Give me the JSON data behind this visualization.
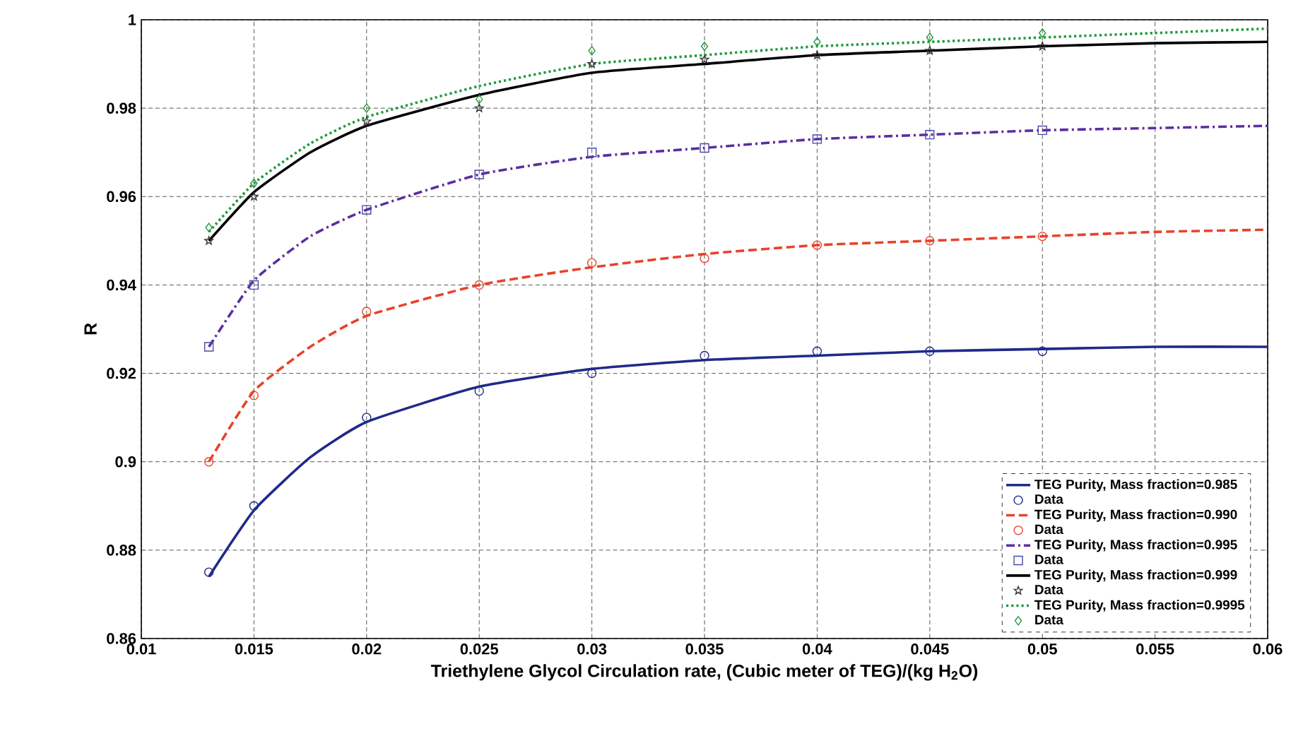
{
  "chart_data": {
    "type": "line",
    "xlabel": "Triethylene Glycol Circulation rate, (Cubic meter of TEG)/(kg H$_{2}$O)",
    "ylabel": "R",
    "xlim": [
      0.01,
      0.06
    ],
    "ylim": [
      0.86,
      1
    ],
    "xticks": [
      0.01,
      0.015,
      0.02,
      0.025,
      0.03,
      0.035,
      0.04,
      0.045,
      0.05,
      0.055,
      0.06
    ],
    "yticks": [
      0.86,
      0.88,
      0.9,
      0.92,
      0.94,
      0.96,
      0.98,
      1
    ],
    "grid": true,
    "legend": "bottom right",
    "series": [
      {
        "name": "TEG Purity, Mass fraction=0.985",
        "color": "#1f2a8a",
        "line_style": "solid",
        "marker": "none",
        "x": [
          0.013,
          0.015,
          0.0175,
          0.02,
          0.025,
          0.03,
          0.035,
          0.04,
          0.045,
          0.05,
          0.055,
          0.06
        ],
        "values": [
          0.874,
          0.889,
          0.901,
          0.909,
          0.917,
          0.921,
          0.923,
          0.924,
          0.925,
          0.9255,
          0.926,
          0.926
        ]
      },
      {
        "name": "Data",
        "type": "scatter",
        "color": "#1f2a8a",
        "marker": "circle",
        "x": [
          0.013,
          0.015,
          0.02,
          0.025,
          0.03,
          0.035,
          0.04,
          0.045,
          0.05
        ],
        "values": [
          0.875,
          0.89,
          0.91,
          0.916,
          0.92,
          0.924,
          0.925,
          0.925,
          0.925
        ]
      },
      {
        "name": "TEG Purity, Mass fraction=0.990",
        "color": "#e8432a",
        "line_style": "dashed",
        "marker": "none",
        "x": [
          0.013,
          0.015,
          0.0175,
          0.02,
          0.025,
          0.03,
          0.035,
          0.04,
          0.045,
          0.05,
          0.055,
          0.06
        ],
        "values": [
          0.9,
          0.916,
          0.926,
          0.933,
          0.94,
          0.944,
          0.947,
          0.949,
          0.95,
          0.951,
          0.952,
          0.9525
        ]
      },
      {
        "name": "Data",
        "type": "scatter",
        "color": "#e8432a",
        "marker": "circle",
        "x": [
          0.013,
          0.015,
          0.02,
          0.025,
          0.03,
          0.035,
          0.04,
          0.045,
          0.05
        ],
        "values": [
          0.9,
          0.915,
          0.934,
          0.94,
          0.945,
          0.946,
          0.949,
          0.95,
          0.951
        ]
      },
      {
        "name": "TEG Purity, Mass fraction=0.995",
        "color": "#5b2ea0",
        "line_style": "dashdot",
        "marker": "none",
        "x": [
          0.013,
          0.015,
          0.0175,
          0.02,
          0.025,
          0.03,
          0.035,
          0.04,
          0.045,
          0.05,
          0.055,
          0.06
        ],
        "values": [
          0.926,
          0.941,
          0.951,
          0.957,
          0.965,
          0.969,
          0.971,
          0.973,
          0.974,
          0.975,
          0.9755,
          0.976
        ]
      },
      {
        "name": "Data",
        "type": "scatter",
        "color": "#4a4aa8",
        "marker": "square",
        "x": [
          0.013,
          0.015,
          0.02,
          0.025,
          0.03,
          0.035,
          0.04,
          0.045,
          0.05
        ],
        "values": [
          0.926,
          0.94,
          0.957,
          0.965,
          0.97,
          0.971,
          0.973,
          0.974,
          0.975
        ]
      },
      {
        "name": "TEG Purity, Mass fraction=0.999",
        "color": "#000000",
        "line_style": "solid",
        "marker": "none",
        "x": [
          0.013,
          0.015,
          0.0175,
          0.02,
          0.025,
          0.03,
          0.035,
          0.04,
          0.045,
          0.05,
          0.055,
          0.06
        ],
        "values": [
          0.95,
          0.961,
          0.97,
          0.976,
          0.983,
          0.988,
          0.99,
          0.992,
          0.993,
          0.994,
          0.9947,
          0.995
        ]
      },
      {
        "name": "Data",
        "type": "scatter",
        "color": "#333333",
        "marker": "star",
        "x": [
          0.013,
          0.015,
          0.02,
          0.025,
          0.03,
          0.035,
          0.04,
          0.045,
          0.05
        ],
        "values": [
          0.95,
          0.96,
          0.977,
          0.98,
          0.99,
          0.991,
          0.992,
          0.993,
          0.994
        ]
      },
      {
        "name": "TEG Purity, Mass fraction=0.9995",
        "color": "#1e9a3a",
        "line_style": "dotted",
        "marker": "none",
        "x": [
          0.013,
          0.015,
          0.0175,
          0.02,
          0.025,
          0.03,
          0.035,
          0.04,
          0.045,
          0.05,
          0.055,
          0.06
        ],
        "values": [
          0.952,
          0.963,
          0.972,
          0.978,
          0.985,
          0.99,
          0.992,
          0.994,
          0.995,
          0.996,
          0.997,
          0.998
        ]
      },
      {
        "name": "Data",
        "type": "scatter",
        "color": "#1e9a3a",
        "marker": "diamond",
        "x": [
          0.013,
          0.015,
          0.02,
          0.025,
          0.03,
          0.035,
          0.04,
          0.045,
          0.05
        ],
        "values": [
          0.953,
          0.963,
          0.98,
          0.982,
          0.993,
          0.994,
          0.995,
          0.996,
          0.997
        ]
      }
    ]
  }
}
